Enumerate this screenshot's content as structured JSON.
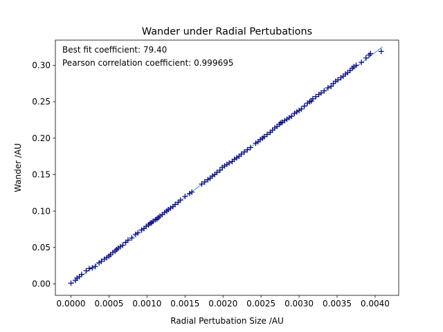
{
  "chart_data": {
    "type": "scatter",
    "title": "Wander under Radial Pertubations",
    "xlabel": "Radial Pertubation Size /AU",
    "ylabel": "Wander /AU",
    "xlim": [
      -0.000205,
      0.00431
    ],
    "ylim": [
      -0.0157,
      0.3345
    ],
    "xticks": [
      0.0,
      0.0005,
      0.001,
      0.0015,
      0.002,
      0.0025,
      0.003,
      0.0035,
      0.004
    ],
    "xtick_labels": [
      "0.0000",
      "0.0005",
      "0.0010",
      "0.0015",
      "0.0020",
      "0.0025",
      "0.0030",
      "0.0035",
      "0.0040"
    ],
    "yticks": [
      0.0,
      0.05,
      0.1,
      0.15,
      0.2,
      0.25,
      0.3
    ],
    "ytick_labels": [
      "0.00",
      "0.05",
      "0.10",
      "0.15",
      "0.20",
      "0.25",
      "0.30"
    ],
    "grid": false,
    "annotations": [
      "Best fit coefficient: 79.40",
      "Pearson correlation coefficient: 0.999695"
    ],
    "fit_line": {
      "slope": 79.4,
      "intercept": 0.0,
      "x_range": [
        0.0,
        0.0041
      ],
      "color": "#1f77b4"
    },
    "marker_color": "#000080",
    "marker": "+",
    "series": [
      {
        "points": [
          [
            0.0,
            0.001
          ],
          [
            6e-05,
            0.005
          ],
          [
            8e-05,
            0.008
          ],
          [
            0.00011,
            0.01
          ],
          [
            0.00014,
            0.013
          ],
          [
            0.0002,
            0.018
          ],
          [
            0.00024,
            0.021
          ],
          [
            0.00028,
            0.022
          ],
          [
            0.00032,
            0.024
          ],
          [
            0.00037,
            0.029
          ],
          [
            0.0004,
            0.031
          ],
          [
            0.00044,
            0.034
          ],
          [
            0.00047,
            0.036
          ],
          [
            0.0005,
            0.038
          ],
          [
            0.00052,
            0.04
          ],
          [
            0.00055,
            0.043
          ],
          [
            0.00058,
            0.045
          ],
          [
            0.0006,
            0.047
          ],
          [
            0.00062,
            0.049
          ],
          [
            0.00065,
            0.051
          ],
          [
            0.00068,
            0.053
          ],
          [
            0.00072,
            0.057
          ],
          [
            0.00075,
            0.06
          ],
          [
            0.0008,
            0.063
          ],
          [
            0.00085,
            0.068
          ],
          [
            0.00088,
            0.07
          ],
          [
            0.00093,
            0.074
          ],
          [
            0.00096,
            0.076
          ],
          [
            0.00099,
            0.079
          ],
          [
            0.00102,
            0.081
          ],
          [
            0.00104,
            0.083
          ],
          [
            0.00106,
            0.084
          ],
          [
            0.00108,
            0.086
          ],
          [
            0.00111,
            0.088
          ],
          [
            0.00113,
            0.089
          ],
          [
            0.00115,
            0.091
          ],
          [
            0.00117,
            0.093
          ],
          [
            0.0012,
            0.095
          ],
          [
            0.00123,
            0.098
          ],
          [
            0.00126,
            0.1
          ],
          [
            0.00128,
            0.102
          ],
          [
            0.00131,
            0.104
          ],
          [
            0.00134,
            0.106
          ],
          [
            0.00137,
            0.109
          ],
          [
            0.00141,
            0.112
          ],
          [
            0.00144,
            0.115
          ],
          [
            0.0015,
            0.12
          ],
          [
            0.00156,
            0.124
          ],
          [
            0.00159,
            0.126
          ],
          [
            0.00172,
            0.137
          ],
          [
            0.00176,
            0.14
          ],
          [
            0.0018,
            0.143
          ],
          [
            0.00183,
            0.145
          ],
          [
            0.00186,
            0.148
          ],
          [
            0.00189,
            0.15
          ],
          [
            0.00192,
            0.153
          ],
          [
            0.00196,
            0.156
          ],
          [
            0.00199,
            0.16
          ],
          [
            0.00202,
            0.162
          ],
          [
            0.00205,
            0.164
          ],
          [
            0.00208,
            0.166
          ],
          [
            0.00212,
            0.168
          ],
          [
            0.00215,
            0.171
          ],
          [
            0.00218,
            0.173
          ],
          [
            0.00221,
            0.175
          ],
          [
            0.00224,
            0.178
          ],
          [
            0.00228,
            0.181
          ],
          [
            0.00232,
            0.184
          ],
          [
            0.00236,
            0.187
          ],
          [
            0.00243,
            0.193
          ],
          [
            0.00246,
            0.195
          ],
          [
            0.00249,
            0.198
          ],
          [
            0.00252,
            0.2
          ],
          [
            0.00254,
            0.202
          ],
          [
            0.00258,
            0.205
          ],
          [
            0.00262,
            0.208
          ],
          [
            0.00265,
            0.211
          ],
          [
            0.00268,
            0.214
          ],
          [
            0.00271,
            0.216
          ],
          [
            0.00274,
            0.219
          ],
          [
            0.00276,
            0.221
          ],
          [
            0.00278,
            0.222
          ],
          [
            0.00281,
            0.224
          ],
          [
            0.00284,
            0.226
          ],
          [
            0.00287,
            0.228
          ],
          [
            0.0029,
            0.23
          ],
          [
            0.00294,
            0.234
          ],
          [
            0.00297,
            0.236
          ],
          [
            0.003,
            0.238
          ],
          [
            0.00303,
            0.24
          ],
          [
            0.00307,
            0.244
          ],
          [
            0.00311,
            0.248
          ],
          [
            0.00314,
            0.25
          ],
          [
            0.00316,
            0.251
          ],
          [
            0.00318,
            0.254
          ],
          [
            0.00322,
            0.257
          ],
          [
            0.00326,
            0.26
          ],
          [
            0.00329,
            0.262
          ],
          [
            0.00333,
            0.265
          ],
          [
            0.00338,
            0.269
          ],
          [
            0.00342,
            0.271
          ],
          [
            0.00345,
            0.275
          ],
          [
            0.00348,
            0.278
          ],
          [
            0.00351,
            0.28
          ],
          [
            0.00355,
            0.283
          ],
          [
            0.00358,
            0.285
          ],
          [
            0.00361,
            0.288
          ],
          [
            0.00364,
            0.29
          ],
          [
            0.00367,
            0.293
          ],
          [
            0.0037,
            0.296
          ],
          [
            0.00372,
            0.298
          ],
          [
            0.00375,
            0.3
          ],
          [
            0.00382,
            0.304
          ],
          [
            0.00388,
            0.31
          ],
          [
            0.00392,
            0.314
          ],
          [
            0.00394,
            0.316
          ],
          [
            0.00408,
            0.319
          ]
        ]
      }
    ]
  }
}
